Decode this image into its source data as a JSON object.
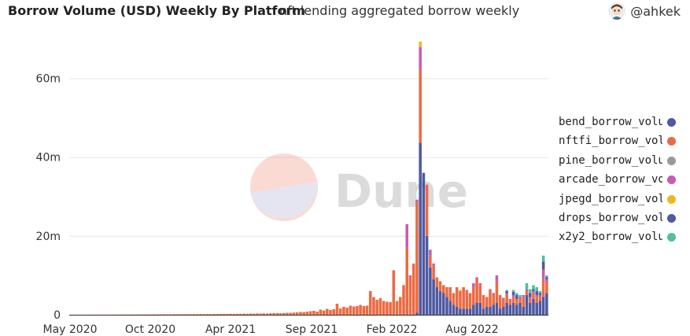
{
  "header": {
    "title": "Borrow Volume (USD) Weekly By Platform",
    "subtitle": "nft lending aggregated borrow weekly",
    "author": "@ahkek",
    "avatar_icon": "user-avatar-icon"
  },
  "watermark": {
    "text": "Dune",
    "icon": "dune-logo-icon"
  },
  "chart_data": {
    "type": "bar",
    "stacked": true,
    "x_ticks": [
      "May 2020",
      "Oct 2020",
      "Apr 2021",
      "Sep 2021",
      "Feb 2022",
      "Aug 2022"
    ],
    "y_ticks": [
      "0",
      "20m",
      "40m",
      "60m"
    ],
    "ylim": [
      0,
      70000000
    ],
    "grid": true,
    "legend_position": "right",
    "series": [
      {
        "name": "bend_borrow_volu",
        "color": "#4e5aa0"
      },
      {
        "name": "nftfi_borrow_volur",
        "color": "#ec6a42"
      },
      {
        "name": "pine_borrow_volur",
        "color": "#999999"
      },
      {
        "name": "arcade_borrow_vo",
        "color": "#c95bb4"
      },
      {
        "name": "jpegd_borrow_vol",
        "color": "#ecb820"
      },
      {
        "name": "drops_borrow_vol",
        "color": "#4e5aa0"
      },
      {
        "name": "x2y2_borrow_volu",
        "color": "#4fbf9c"
      }
    ],
    "weeks_start": "2020-05-04",
    "weekly_values": [
      [
        0,
        0.02,
        0,
        0,
        0,
        0,
        0
      ],
      [
        0,
        0.02,
        0,
        0,
        0,
        0,
        0
      ],
      [
        0,
        0.03,
        0,
        0,
        0,
        0,
        0
      ],
      [
        0,
        0.02,
        0,
        0,
        0,
        0,
        0
      ],
      [
        0,
        0.03,
        0,
        0,
        0,
        0,
        0
      ],
      [
        0,
        0.02,
        0,
        0,
        0,
        0,
        0
      ],
      [
        0,
        0.03,
        0,
        0,
        0,
        0,
        0
      ],
      [
        0,
        0.04,
        0,
        0,
        0,
        0,
        0
      ],
      [
        0,
        0.03,
        0,
        0,
        0,
        0,
        0
      ],
      [
        0,
        0.05,
        0,
        0,
        0,
        0,
        0
      ],
      [
        0,
        0.04,
        0,
        0,
        0,
        0,
        0
      ],
      [
        0,
        0.05,
        0,
        0,
        0,
        0,
        0
      ],
      [
        0,
        0.04,
        0,
        0,
        0,
        0,
        0
      ],
      [
        0,
        0.06,
        0,
        0,
        0,
        0,
        0
      ],
      [
        0,
        0.05,
        0,
        0,
        0,
        0,
        0
      ],
      [
        0,
        0.06,
        0,
        0,
        0,
        0,
        0
      ],
      [
        0,
        0.07,
        0,
        0,
        0,
        0,
        0
      ],
      [
        0,
        0.06,
        0,
        0,
        0,
        0,
        0
      ],
      [
        0,
        0.08,
        0,
        0,
        0,
        0,
        0
      ],
      [
        0,
        0.07,
        0,
        0,
        0,
        0,
        0
      ],
      [
        0,
        0.08,
        0,
        0,
        0,
        0,
        0
      ],
      [
        0,
        0.09,
        0,
        0,
        0,
        0,
        0
      ],
      [
        0,
        0.08,
        0,
        0,
        0,
        0,
        0
      ],
      [
        0,
        0.1,
        0,
        0,
        0,
        0,
        0
      ],
      [
        0,
        0.09,
        0,
        0,
        0,
        0,
        0
      ],
      [
        0,
        0.1,
        0,
        0,
        0,
        0,
        0
      ],
      [
        0,
        0.11,
        0,
        0,
        0,
        0,
        0
      ],
      [
        0,
        0.1,
        0,
        0,
        0,
        0,
        0
      ],
      [
        0,
        0.12,
        0,
        0,
        0,
        0,
        0
      ],
      [
        0,
        0.11,
        0,
        0,
        0,
        0,
        0
      ],
      [
        0,
        0.12,
        0,
        0,
        0,
        0,
        0
      ],
      [
        0,
        0.13,
        0,
        0,
        0,
        0,
        0
      ],
      [
        0,
        0.12,
        0,
        0,
        0,
        0,
        0
      ],
      [
        0,
        0.14,
        0,
        0,
        0,
        0,
        0
      ],
      [
        0,
        0.13,
        0,
        0,
        0,
        0,
        0
      ],
      [
        0,
        0.15,
        0,
        0,
        0,
        0,
        0
      ],
      [
        0,
        0.14,
        0,
        0,
        0,
        0,
        0
      ],
      [
        0,
        0.16,
        0,
        0,
        0,
        0,
        0
      ],
      [
        0,
        0.15,
        0,
        0,
        0,
        0,
        0
      ],
      [
        0,
        0.17,
        0,
        0,
        0,
        0,
        0
      ],
      [
        0,
        0.16,
        0,
        0,
        0,
        0,
        0
      ],
      [
        0,
        0.18,
        0,
        0,
        0,
        0,
        0
      ],
      [
        0,
        0.17,
        0,
        0,
        0,
        0,
        0
      ],
      [
        0,
        0.19,
        0,
        0,
        0,
        0,
        0
      ],
      [
        0,
        0.18,
        0,
        0,
        0,
        0,
        0
      ],
      [
        0,
        0.2,
        0,
        0,
        0,
        0,
        0
      ],
      [
        0,
        0.22,
        0,
        0,
        0,
        0,
        0
      ],
      [
        0,
        0.2,
        0,
        0,
        0,
        0,
        0
      ],
      [
        0,
        0.23,
        0,
        0,
        0,
        0,
        0
      ],
      [
        0,
        0.21,
        0,
        0,
        0,
        0,
        0
      ],
      [
        0,
        0.25,
        0,
        0,
        0,
        0,
        0
      ],
      [
        0,
        0.23,
        0,
        0,
        0,
        0,
        0
      ],
      [
        0,
        0.27,
        0,
        0,
        0,
        0,
        0
      ],
      [
        0,
        0.25,
        0,
        0,
        0,
        0,
        0
      ],
      [
        0,
        0.3,
        0,
        0,
        0,
        0,
        0
      ],
      [
        0,
        0.28,
        0,
        0,
        0,
        0,
        0
      ],
      [
        0,
        0.33,
        0,
        0,
        0,
        0,
        0
      ],
      [
        0,
        0.3,
        0,
        0,
        0,
        0,
        0
      ],
      [
        0,
        0.35,
        0,
        0,
        0,
        0,
        0
      ],
      [
        0,
        0.32,
        0,
        0,
        0,
        0,
        0
      ],
      [
        0,
        0.38,
        0,
        0,
        0,
        0,
        0
      ],
      [
        0,
        0.4,
        0,
        0,
        0,
        0,
        0
      ],
      [
        0,
        0.42,
        0,
        0,
        0,
        0,
        0
      ],
      [
        0,
        0.38,
        0,
        0,
        0,
        0,
        0
      ],
      [
        0,
        0.45,
        0,
        0,
        0,
        0,
        0
      ],
      [
        0,
        0.5,
        0,
        0,
        0,
        0,
        0
      ],
      [
        0,
        0.48,
        0,
        0,
        0,
        0,
        0
      ],
      [
        0,
        0.55,
        0,
        0,
        0,
        0,
        0
      ],
      [
        0,
        0.6,
        0,
        0,
        0,
        0,
        0
      ],
      [
        0,
        0.7,
        0,
        0,
        0,
        0,
        0
      ],
      [
        0,
        0.65,
        0,
        0,
        0,
        0,
        0
      ],
      [
        0,
        0.8,
        0,
        0,
        0,
        0,
        0
      ],
      [
        0,
        0.9,
        0,
        0,
        0,
        0,
        0
      ],
      [
        0,
        1.0,
        0,
        0,
        0,
        0,
        0
      ],
      [
        0,
        0.8,
        0,
        0,
        0,
        0,
        0
      ],
      [
        0,
        1.3,
        0,
        0,
        0,
        0,
        0
      ],
      [
        0,
        1.1,
        0,
        0,
        0,
        0,
        0
      ],
      [
        0,
        1.5,
        0,
        0,
        0,
        0,
        0
      ],
      [
        0,
        1.2,
        0,
        0,
        0,
        0,
        0
      ],
      [
        0,
        1.4,
        0,
        0,
        0,
        0,
        0
      ],
      [
        0,
        2.8,
        0,
        0,
        0,
        0,
        0
      ],
      [
        0,
        1.6,
        0,
        0,
        0,
        0,
        0
      ],
      [
        0,
        2.0,
        0,
        0,
        0,
        0,
        0
      ],
      [
        0,
        1.8,
        0,
        0,
        0,
        0,
        0
      ],
      [
        0,
        2.3,
        0,
        0,
        0,
        0,
        0
      ],
      [
        0,
        2.1,
        0,
        0,
        0,
        0,
        0
      ],
      [
        0,
        2.2,
        0,
        0,
        0,
        0,
        0
      ],
      [
        0,
        2.5,
        0,
        0,
        0,
        0,
        0
      ],
      [
        0,
        2.2,
        0,
        0,
        0,
        0,
        0
      ],
      [
        0,
        2.3,
        0,
        0,
        0,
        0,
        0
      ],
      [
        0,
        6.0,
        0,
        0,
        0,
        0,
        0
      ],
      [
        0,
        4.5,
        0,
        0,
        0,
        0,
        0
      ],
      [
        0,
        3.8,
        0,
        0,
        0,
        0,
        0
      ],
      [
        0,
        4.2,
        0,
        0,
        0,
        0,
        0
      ],
      [
        0,
        3.5,
        0,
        0,
        0,
        0,
        0
      ],
      [
        0,
        3.3,
        0,
        0,
        0,
        0,
        0
      ],
      [
        0,
        3.2,
        0,
        0,
        0,
        0,
        0
      ],
      [
        0,
        11.3,
        0,
        0,
        0,
        0,
        0
      ],
      [
        0,
        3.5,
        0,
        0,
        0,
        0,
        0
      ],
      [
        0,
        4.5,
        0,
        0,
        0,
        0,
        0
      ],
      [
        0,
        7.5,
        0,
        0,
        0,
        0,
        0
      ],
      [
        0,
        17.0,
        0,
        6.0,
        0,
        0,
        0
      ],
      [
        0,
        9.5,
        0,
        0.5,
        0,
        0,
        0
      ],
      [
        0,
        13.0,
        0,
        0,
        0,
        0,
        0
      ],
      [
        0.5,
        28.0,
        0,
        0.7,
        0,
        0,
        0
      ],
      [
        43.6,
        18.5,
        0,
        5.8,
        1.4,
        0,
        0
      ],
      [
        36.0,
        0,
        0,
        0,
        0,
        0,
        0
      ],
      [
        20.0,
        13.0,
        0,
        0,
        0,
        0,
        0
      ],
      [
        12.0,
        3.0,
        0,
        1.5,
        0,
        0,
        0
      ],
      [
        9.0,
        3.5,
        0,
        0.5,
        0,
        0,
        0
      ],
      [
        7.0,
        2.5,
        0,
        0,
        0,
        0,
        0
      ],
      [
        6.0,
        2.5,
        0,
        0,
        0,
        0,
        0
      ],
      [
        5.5,
        2.0,
        0,
        0,
        0,
        0,
        0
      ],
      [
        4.5,
        2.5,
        0,
        0,
        0,
        0,
        0
      ],
      [
        3.5,
        3.5,
        0,
        0,
        0,
        0,
        0
      ],
      [
        2.5,
        3.0,
        0,
        0,
        0,
        0,
        0
      ],
      [
        2.0,
        5.0,
        0,
        0,
        0,
        0,
        0
      ],
      [
        1.5,
        4.5,
        0,
        0,
        0.3,
        0,
        0
      ],
      [
        1.5,
        5.5,
        0,
        0,
        0,
        0,
        0
      ],
      [
        1.5,
        4.5,
        0,
        0.3,
        0,
        0,
        0
      ],
      [
        1.5,
        4.0,
        0,
        0,
        0,
        0,
        0
      ],
      [
        2.5,
        4.5,
        0,
        1.0,
        0,
        0,
        0
      ],
      [
        3.0,
        6.0,
        0,
        0.5,
        0,
        0,
        0
      ],
      [
        3.0,
        4.5,
        0,
        0.5,
        0,
        0,
        0
      ],
      [
        1.5,
        3.5,
        0,
        0,
        0,
        0,
        0
      ],
      [
        2.0,
        2.5,
        0,
        0,
        0,
        0,
        0
      ],
      [
        2.0,
        4.5,
        0,
        0,
        0,
        0,
        0
      ],
      [
        2.5,
        2.5,
        0,
        0.5,
        0,
        0,
        0
      ],
      [
        3.0,
        5.5,
        0,
        1.5,
        0,
        0,
        0
      ],
      [
        1.5,
        3.5,
        0,
        0,
        0,
        0,
        0
      ],
      [
        2.0,
        2.0,
        0,
        0.3,
        0,
        0,
        0
      ],
      [
        3.0,
        2.0,
        0,
        0.5,
        0,
        0.5,
        0.3
      ],
      [
        2.5,
        1.0,
        0,
        0.5,
        0,
        0,
        0
      ],
      [
        3.0,
        1.5,
        0,
        0.5,
        0,
        0.8,
        0.5
      ],
      [
        2.5,
        1.5,
        0,
        0,
        0,
        1.0,
        0.5
      ],
      [
        3.0,
        1.0,
        0,
        0.5,
        0,
        0,
        0.5
      ],
      [
        2.0,
        2.5,
        0,
        0.5,
        0,
        0,
        0
      ],
      [
        5.0,
        1.0,
        0,
        0.5,
        0,
        0,
        1.5
      ],
      [
        3.0,
        1.0,
        0,
        0.5,
        0,
        1.0,
        1.0
      ],
      [
        4.0,
        1.5,
        0,
        0.5,
        0,
        0.5,
        1.0
      ],
      [
        3.0,
        1.5,
        0,
        0.5,
        0,
        1.0,
        1.0
      ],
      [
        3.5,
        1.0,
        0,
        0.5,
        0,
        0.5,
        0.5
      ],
      [
        4.5,
        4.5,
        0,
        2.5,
        0,
        2.0,
        1.5
      ],
      [
        5.5,
        2.5,
        0,
        1.0,
        0,
        0.5,
        0.5
      ]
    ]
  }
}
